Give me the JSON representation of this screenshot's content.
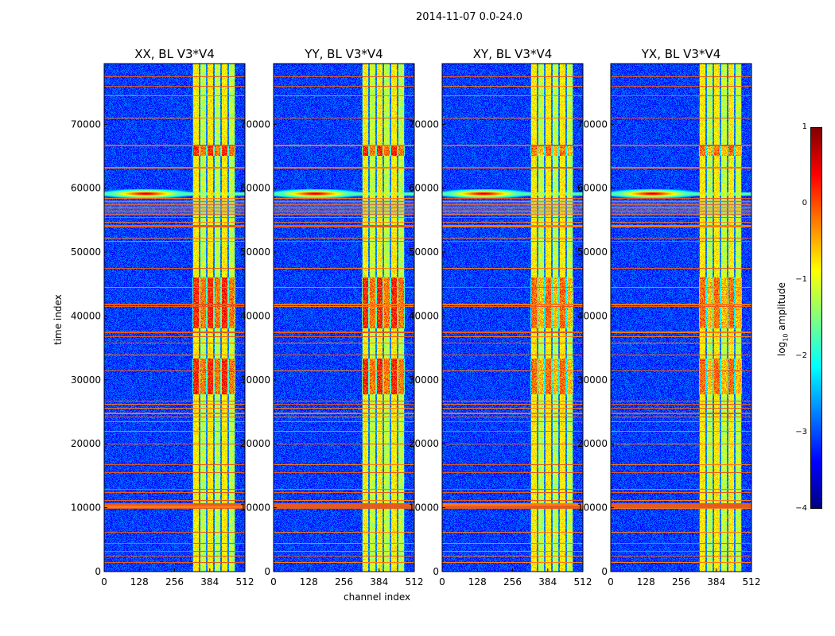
{
  "chart_data": {
    "type": "heatmap",
    "title": "2014-11-07 0.0-24.0",
    "xlabel": "channel index",
    "ylabel": "time index",
    "xlim": [
      0,
      512
    ],
    "ylim": [
      0,
      79500
    ],
    "xticks": [
      0,
      128,
      256,
      384,
      512
    ],
    "yticks": [
      0,
      10000,
      20000,
      30000,
      40000,
      50000,
      60000,
      70000
    ],
    "panels": [
      {
        "title": "XX, BL V3*V4"
      },
      {
        "title": "YY, BL V3*V4"
      },
      {
        "title": "XY, BL V3*V4"
      },
      {
        "title": "YX, BL V3*V4"
      }
    ],
    "colorbar": {
      "label": "log10 amplitude",
      "label_main": "log",
      "label_sub": "10",
      "label_tail": " amplitude",
      "range": [
        -4,
        1
      ],
      "ticks": [
        1,
        0,
        -1,
        -2,
        -3,
        -4
      ],
      "tick_labels": [
        "1",
        "0",
        "−1",
        "−2",
        "−3",
        "−4"
      ],
      "colormap": "jet"
    },
    "rfi_band_channels": [
      320,
      475
    ],
    "flare_time": 59200,
    "flare_channel": 150
  }
}
